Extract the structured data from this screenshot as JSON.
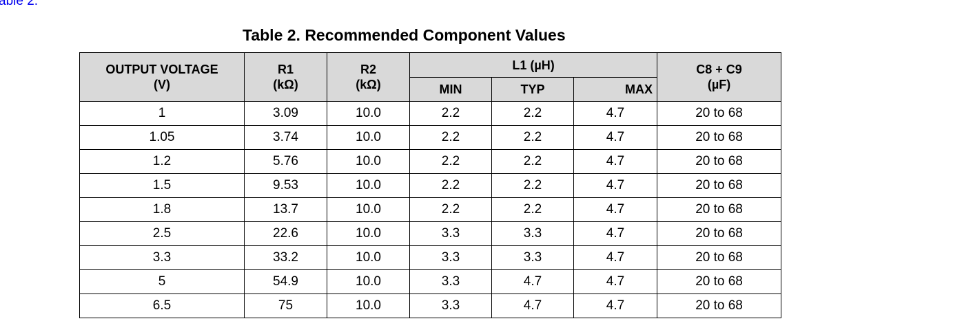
{
  "top_link": "able 2.",
  "caption": "Table 2. Recommended Component Values",
  "headers": {
    "output_voltage_line1": "OUTPUT VOLTAGE",
    "output_voltage_line2": "(V)",
    "r1_line1": "R1",
    "r1_line2": "(kΩ)",
    "r2_line1": "R2",
    "r2_line2": "(kΩ)",
    "l1": "L1 (µH)",
    "l1_min": "MIN",
    "l1_typ": "TYP",
    "l1_max": "MAX",
    "c_line1": "C8 + C9",
    "c_line2": "(µF)"
  },
  "rows": [
    {
      "vout": "1",
      "r1": "3.09",
      "r2": "10.0",
      "min": "2.2",
      "typ": "2.2",
      "max": "4.7",
      "c": "20 to 68"
    },
    {
      "vout": "1.05",
      "r1": "3.74",
      "r2": "10.0",
      "min": "2.2",
      "typ": "2.2",
      "max": "4.7",
      "c": "20 to 68"
    },
    {
      "vout": "1.2",
      "r1": "5.76",
      "r2": "10.0",
      "min": "2.2",
      "typ": "2.2",
      "max": "4.7",
      "c": "20 to 68"
    },
    {
      "vout": "1.5",
      "r1": "9.53",
      "r2": "10.0",
      "min": "2.2",
      "typ": "2.2",
      "max": "4.7",
      "c": "20 to 68"
    },
    {
      "vout": "1.8",
      "r1": "13.7",
      "r2": "10.0",
      "min": "2.2",
      "typ": "2.2",
      "max": "4.7",
      "c": "20 to 68"
    },
    {
      "vout": "2.5",
      "r1": "22.6",
      "r2": "10.0",
      "min": "3.3",
      "typ": "3.3",
      "max": "4.7",
      "c": "20 to 68"
    },
    {
      "vout": "3.3",
      "r1": "33.2",
      "r2": "10.0",
      "min": "3.3",
      "typ": "3.3",
      "max": "4.7",
      "c": "20 to 68"
    },
    {
      "vout": "5",
      "r1": "54.9",
      "r2": "10.0",
      "min": "3.3",
      "typ": "4.7",
      "max": "4.7",
      "c": "20 to 68"
    },
    {
      "vout": "6.5",
      "r1": "75",
      "r2": "10.0",
      "min": "3.3",
      "typ": "4.7",
      "max": "4.7",
      "c": "20 to 68"
    }
  ]
}
